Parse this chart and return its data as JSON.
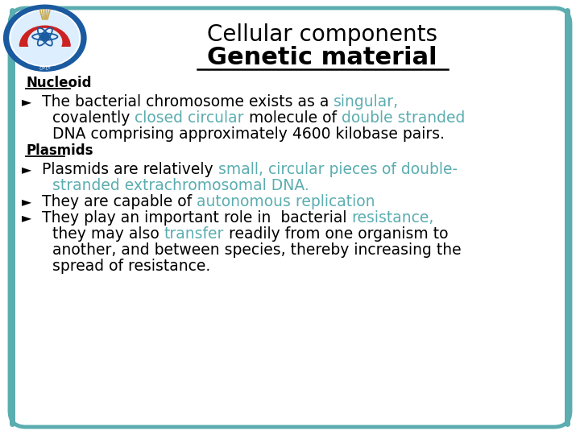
{
  "title1": "Cellular components",
  "title2": "Genetic material",
  "bg_color": "#ffffff",
  "border_color": "#5BADB0",
  "teal_color": "#5BADB0",
  "black_color": "#000000",
  "section1_heading": "Nucleoid",
  "section2_heading": "Plasmids",
  "figsize": [
    7.2,
    5.4
  ],
  "dpi": 100,
  "title1_fontsize": 20,
  "title2_fontsize": 22,
  "body_fontsize": 13.5,
  "heading_fontsize": 12
}
